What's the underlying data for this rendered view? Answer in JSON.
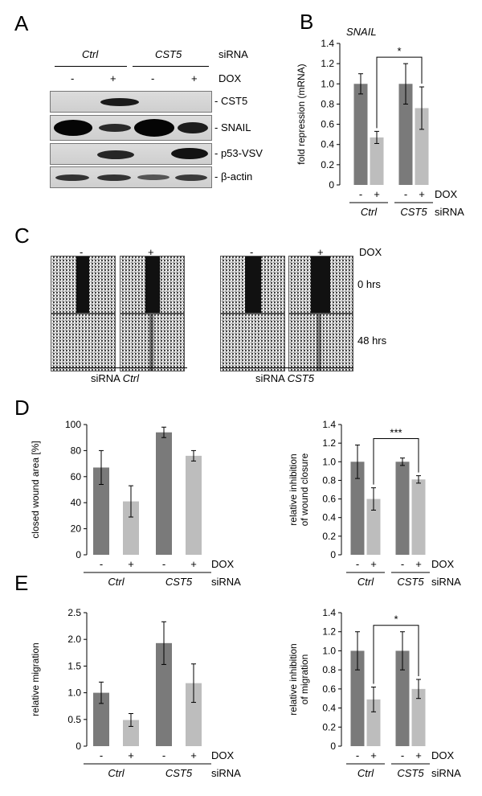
{
  "panels": {
    "A": "A",
    "B": "B",
    "C": "C",
    "D": "D",
    "E": "E"
  },
  "colors": {
    "ctrl_bar": "#7a7a7a",
    "dox_bar": "#bdbdbd",
    "axis": "#000000"
  },
  "blot": {
    "group_ctrl": "Ctrl",
    "group_cst5": "CST5",
    "row_siRNA": "siRNA",
    "dox_signs": [
      "-",
      "+",
      "-",
      "+"
    ],
    "row_dox": "DOX",
    "proteins": [
      "- CST5",
      "- SNAIL",
      "- p53-VSV",
      "- β-actin"
    ]
  },
  "scratch": {
    "dox_signs": [
      "-",
      "+",
      "-",
      "+"
    ],
    "dox_label": "DOX",
    "times": [
      "0 hrs",
      "48 hrs"
    ],
    "caption_ctrl_prefix": "siRNA",
    "caption_ctrl_name": "Ctrl",
    "caption_cst5_prefix": "siRNA",
    "caption_cst5_name": "CST5"
  },
  "chart_data": [
    {
      "id": "B",
      "type": "bar",
      "title": "SNAIL",
      "ylabel": "fold repression (mRNA)",
      "categories": [
        "Ctrl -",
        "Ctrl +",
        "CST5 -",
        "CST5 +"
      ],
      "values": [
        1.0,
        0.47,
        1.0,
        0.76
      ],
      "errors": [
        0.1,
        0.06,
        0.2,
        0.21
      ],
      "ylim": [
        0,
        1.4
      ],
      "yticks": [
        "0",
        "0.2",
        "0.4",
        "0.6",
        "0.8",
        "1.0",
        "1.2",
        "1.4"
      ],
      "dox": [
        "-",
        "+",
        "-",
        "+"
      ],
      "dox_label": "DOX",
      "groups": [
        "Ctrl",
        "CST5"
      ],
      "group_suffix": "siRNA",
      "significance": "*"
    },
    {
      "id": "D1",
      "type": "bar",
      "ylabel": "closed wound area [%]",
      "categories": [
        "Ctrl -",
        "Ctrl +",
        "CST5 -",
        "CST5 +"
      ],
      "values": [
        67,
        41,
        94,
        76
      ],
      "errors": [
        13,
        12,
        4,
        4
      ],
      "ylim": [
        0,
        100
      ],
      "yticks": [
        "0",
        "20",
        "40",
        "60",
        "80",
        "100"
      ],
      "dox": [
        "-",
        "+",
        "-",
        "+"
      ],
      "dox_label": "DOX",
      "groups": [
        "Ctrl",
        "CST5"
      ],
      "group_suffix": "siRNA"
    },
    {
      "id": "D2",
      "type": "bar",
      "ylabel": "relative inhibition of wound closure",
      "ylabel_lines": [
        "relative inhibition",
        "of wound closure"
      ],
      "categories": [
        "Ctrl -",
        "Ctrl +",
        "CST5 -",
        "CST5 +"
      ],
      "values": [
        1.0,
        0.6,
        1.0,
        0.81
      ],
      "errors": [
        0.18,
        0.12,
        0.04,
        0.04
      ],
      "ylim": [
        0,
        1.4
      ],
      "yticks": [
        "0",
        "0.2",
        "0.4",
        "0.6",
        "0.8",
        "1.0",
        "1.2",
        "1.4"
      ],
      "dox": [
        "-",
        "+",
        "-",
        "+"
      ],
      "dox_label": "DOX",
      "groups": [
        "Ctrl",
        "CST5"
      ],
      "group_suffix": "siRNA",
      "significance": "***"
    },
    {
      "id": "E1",
      "type": "bar",
      "ylabel": "relative migration",
      "categories": [
        "Ctrl -",
        "Ctrl +",
        "CST5 -",
        "CST5 +"
      ],
      "values": [
        1.0,
        0.49,
        1.93,
        1.18
      ],
      "errors": [
        0.2,
        0.12,
        0.4,
        0.36
      ],
      "ylim": [
        0,
        2.5
      ],
      "yticks": [
        "0",
        "0.5",
        "1.0",
        "1.5",
        "2.0",
        "2.5"
      ],
      "dox": [
        "-",
        "+",
        "-",
        "+"
      ],
      "dox_label": "DOX",
      "groups": [
        "Ctrl",
        "CST5"
      ],
      "group_suffix": "siRNA"
    },
    {
      "id": "E2",
      "type": "bar",
      "ylabel": "relative inhibition of migration",
      "ylabel_lines": [
        "relative inhibition",
        "of migration"
      ],
      "categories": [
        "Ctrl -",
        "Ctrl +",
        "CST5 -",
        "CST5 +"
      ],
      "values": [
        1.0,
        0.49,
        1.0,
        0.6
      ],
      "errors": [
        0.2,
        0.13,
        0.2,
        0.1
      ],
      "ylim": [
        0,
        1.4
      ],
      "yticks": [
        "0",
        "0.2",
        "0.4",
        "0.6",
        "0.8",
        "1.0",
        "1.2",
        "1.4"
      ],
      "dox": [
        "-",
        "+",
        "-",
        "+"
      ],
      "dox_label": "DOX",
      "groups": [
        "Ctrl",
        "CST5"
      ],
      "group_suffix": "siRNA",
      "significance": "*"
    }
  ]
}
